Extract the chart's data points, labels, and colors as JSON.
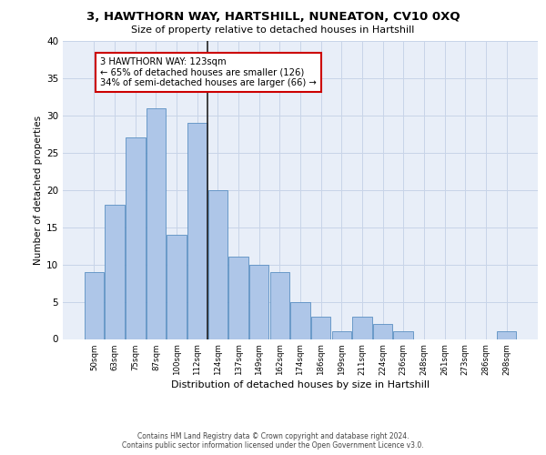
{
  "title1": "3, HAWTHORN WAY, HARTSHILL, NUNEATON, CV10 0XQ",
  "title2": "Size of property relative to detached houses in Hartshill",
  "xlabel": "Distribution of detached houses by size in Hartshill",
  "ylabel": "Number of detached properties",
  "categories": [
    "50sqm",
    "63sqm",
    "75sqm",
    "87sqm",
    "100sqm",
    "112sqm",
    "124sqm",
    "137sqm",
    "149sqm",
    "162sqm",
    "174sqm",
    "186sqm",
    "199sqm",
    "211sqm",
    "224sqm",
    "236sqm",
    "248sqm",
    "261sqm",
    "273sqm",
    "286sqm",
    "298sqm"
  ],
  "values": [
    9,
    18,
    27,
    31,
    14,
    29,
    20,
    11,
    10,
    9,
    5,
    3,
    1,
    3,
    2,
    1,
    0,
    0,
    0,
    0,
    1
  ],
  "bar_color": "#aec6e8",
  "bar_edge_color": "#5a8fc2",
  "annotation_text": "3 HAWTHORN WAY: 123sqm\n← 65% of detached houses are smaller (126)\n34% of semi-detached houses are larger (66) →",
  "annotation_box_color": "#ffffff",
  "annotation_box_edge": "#cc0000",
  "vline_x": 6,
  "ylim": [
    0,
    40
  ],
  "yticks": [
    0,
    5,
    10,
    15,
    20,
    25,
    30,
    35,
    40
  ],
  "grid_color": "#c8d4e8",
  "bg_color": "#e8eef8",
  "footer1": "Contains HM Land Registry data © Crown copyright and database right 2024.",
  "footer2": "Contains public sector information licensed under the Open Government Licence v3.0."
}
